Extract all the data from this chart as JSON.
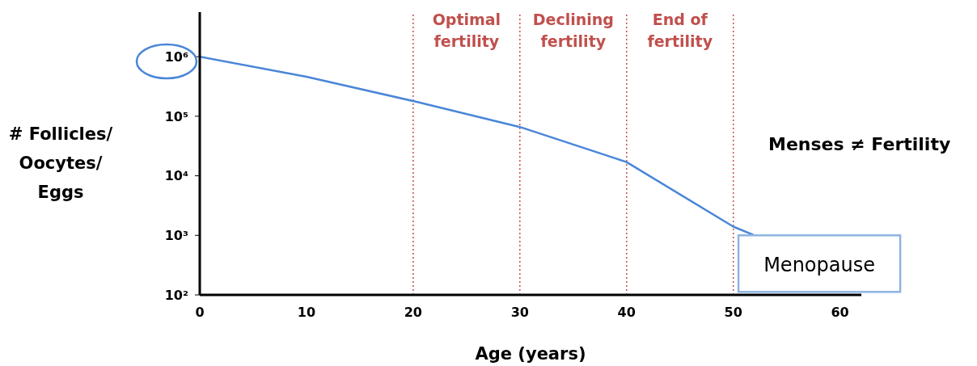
{
  "chart_data": {
    "type": "line",
    "xlabel": "Age (years)",
    "ylabel": "# Follicles/ Oocytes/ Eggs",
    "x": [
      0,
      10,
      20,
      30,
      40,
      50,
      52
    ],
    "series": [
      {
        "color": "#4a86d8",
        "values": [
          1000000,
          460000,
          180000,
          66000,
          17000,
          1400,
          1000
        ]
      }
    ],
    "xlim": [
      0,
      62
    ],
    "xticks": [
      0,
      10,
      20,
      30,
      40,
      50,
      60
    ],
    "log": "y",
    "ylim": [
      100,
      5600000
    ],
    "yticks": [
      {
        "value": 100,
        "label": "10²"
      },
      {
        "value": 1000,
        "label": "10³"
      },
      {
        "value": 10000,
        "label": "10⁴"
      },
      {
        "value": 100000,
        "label": "10⁵"
      },
      {
        "value": 1000000,
        "label": "10⁶"
      }
    ],
    "ref_lines": [
      {
        "axis": "x",
        "value": 20,
        "label": "Optimal fertility",
        "color": "#c0504d",
        "line_style": "dotted"
      },
      {
        "axis": "x",
        "value": 30,
        "label": "Declining fertility",
        "color": "#c0504d",
        "line_style": "dotted"
      },
      {
        "axis": "x",
        "value": 40,
        "label": "End of fertility",
        "color": "#c0504d",
        "line_style": "dotted"
      },
      {
        "axis": "x",
        "value": 50,
        "color": "#c0504d",
        "line_style": "dotted"
      }
    ],
    "annotations": [
      "Menses ≠ Fertility",
      {
        "text": "Menopause",
        "x": 52,
        "y": 1000
      }
    ],
    "grid": false,
    "legend": false,
    "marker": "none",
    "line_style": "solid"
  }
}
